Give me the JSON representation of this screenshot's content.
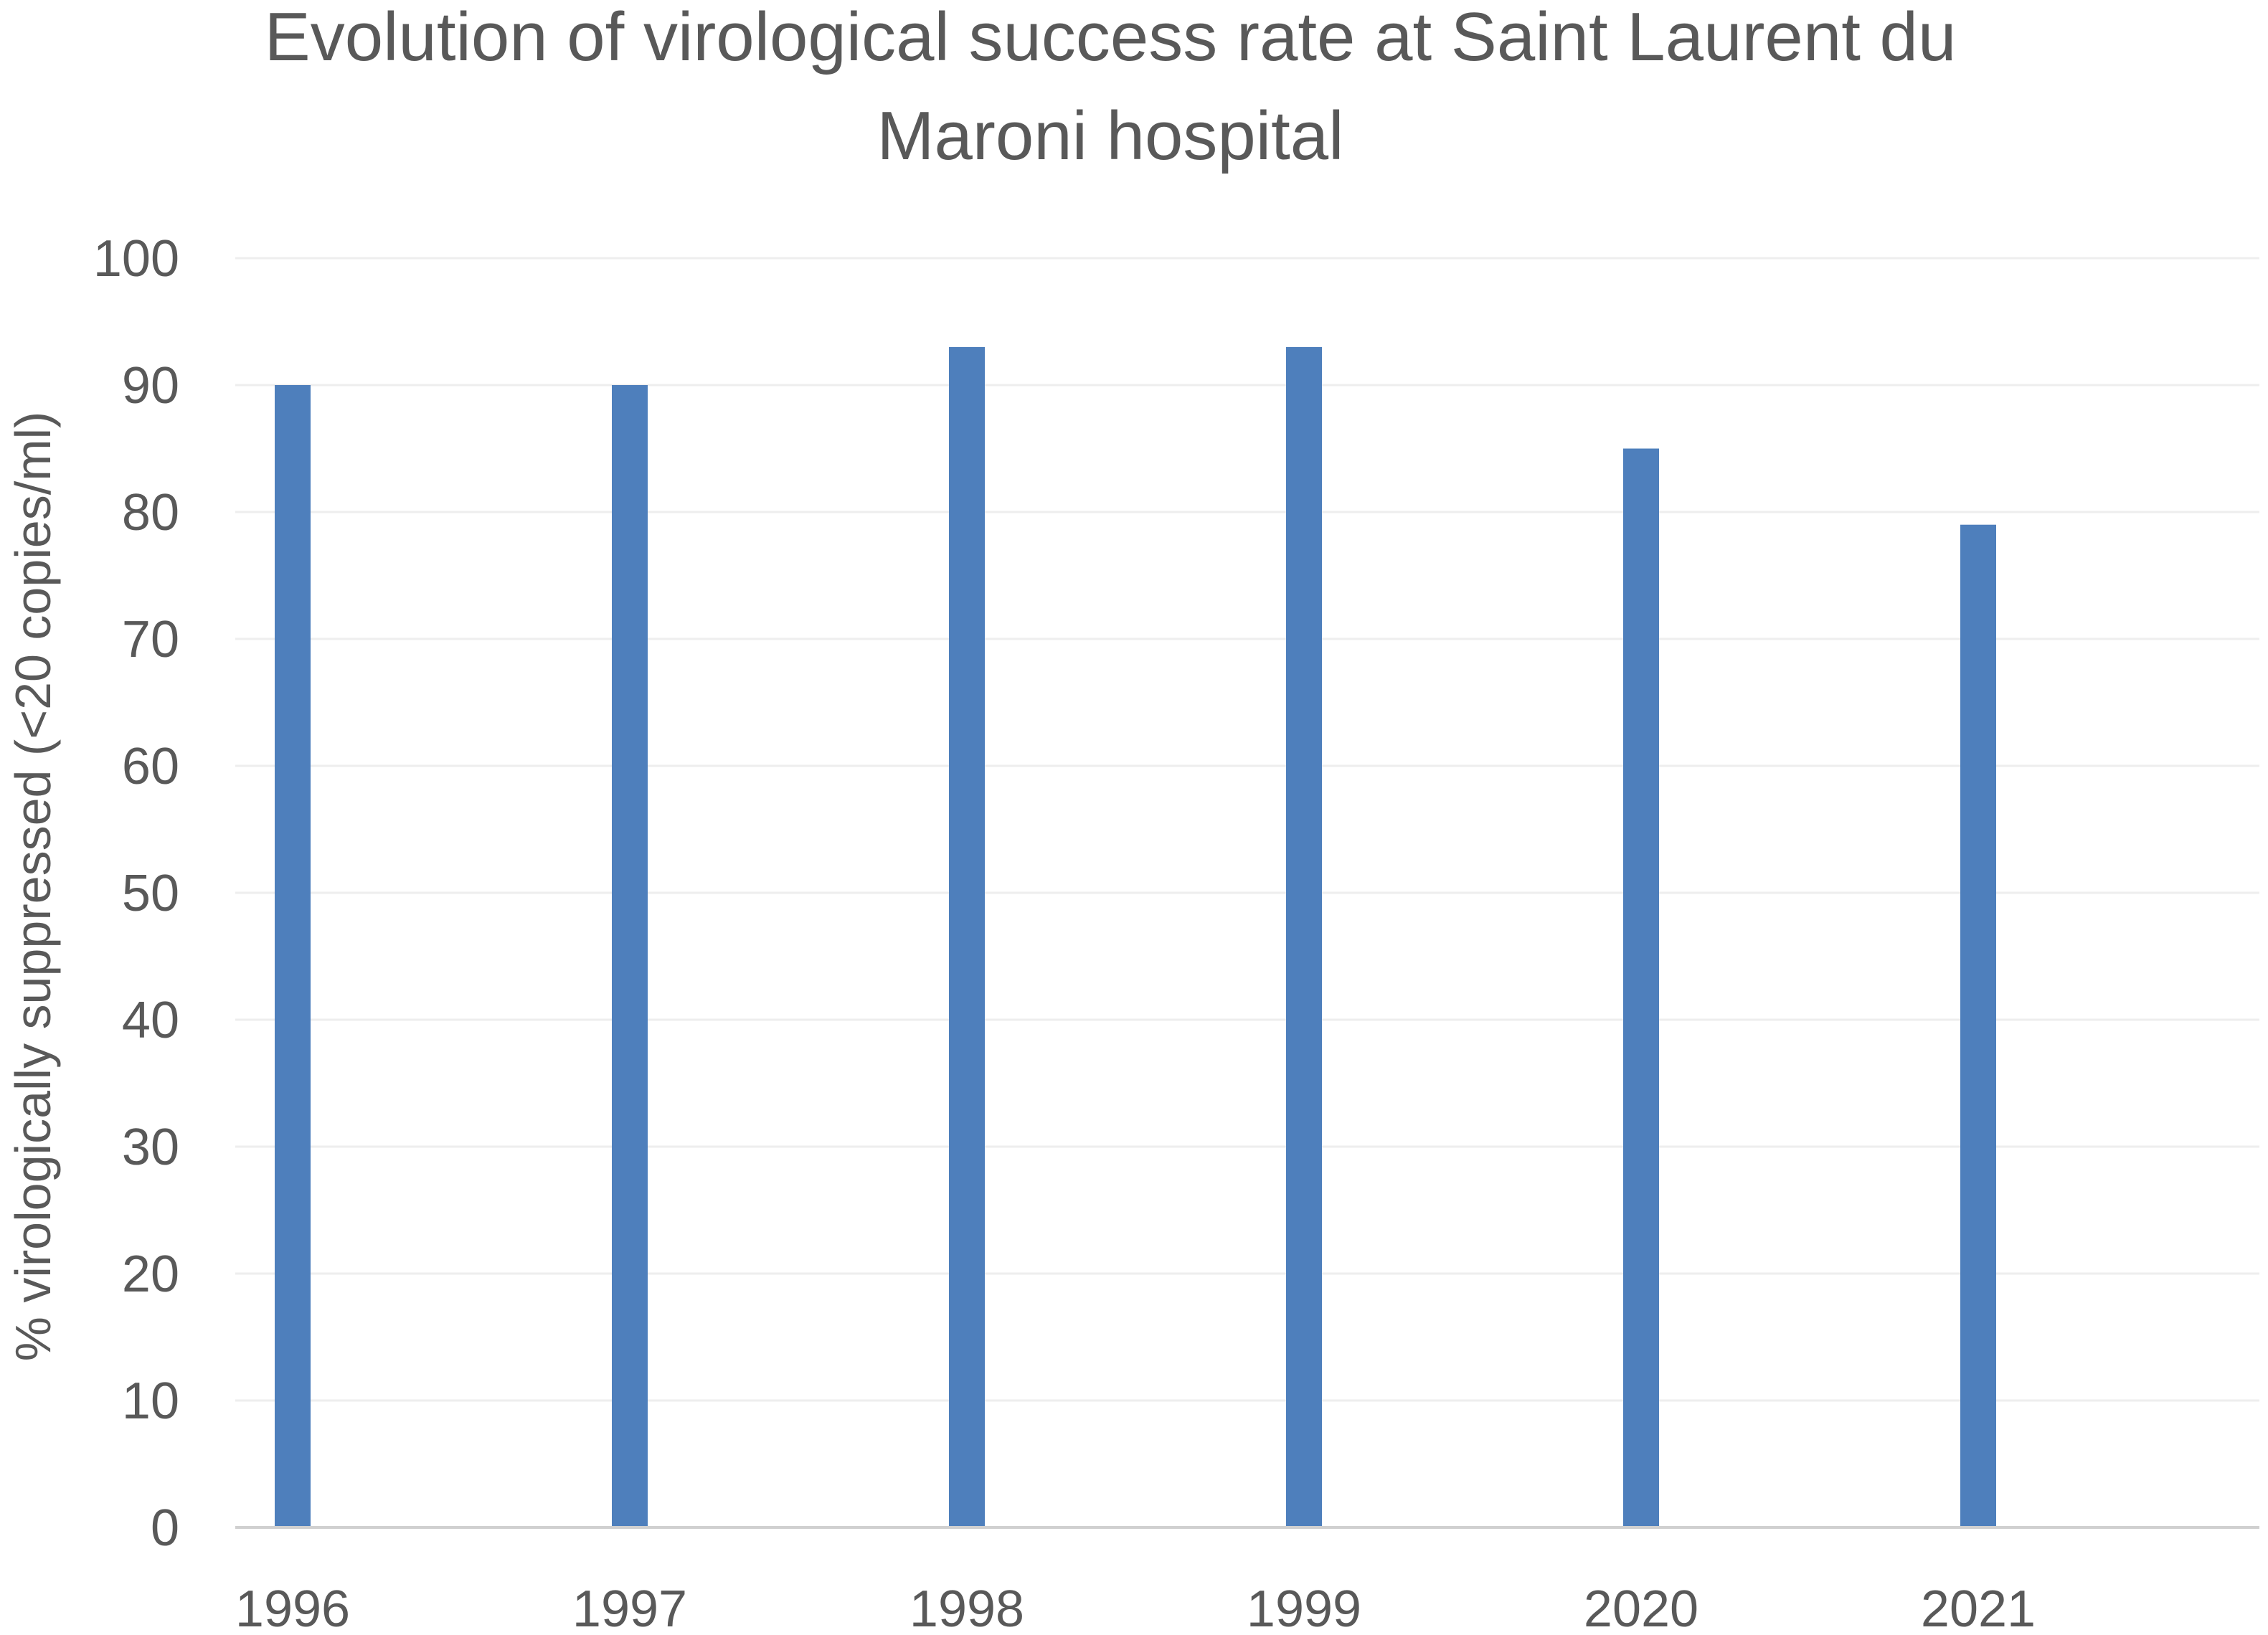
{
  "chart_data": {
    "type": "bar",
    "title": "Evolution of virological success rate at Saint Laurent du Maroni hospital",
    "title_lines": [
      "Evolution of virological success rate at Saint Laurent du",
      "Maroni hospital"
    ],
    "xlabel": "",
    "ylabel": "% virologically suppressed (<20 copies/ml)",
    "categories": [
      "1996",
      "1997",
      "1998",
      "1999",
      "2020",
      "2021"
    ],
    "values": [
      90,
      90,
      93,
      93,
      85,
      79
    ],
    "ylim": [
      0,
      100
    ],
    "yticks": [
      0,
      10,
      20,
      30,
      40,
      50,
      60,
      70,
      80,
      90,
      100
    ],
    "grid": true,
    "legend": "none",
    "colors": {
      "bar": "#4e7fbc",
      "grid": "#eeeeee",
      "axis": "#d0d0d0",
      "text": "#595959"
    }
  }
}
